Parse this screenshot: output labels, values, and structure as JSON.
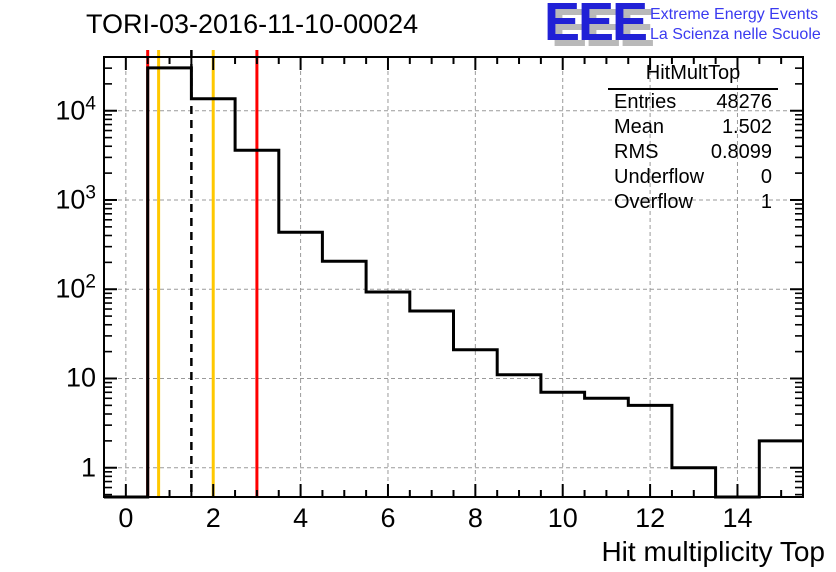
{
  "header": {
    "title": "TORI-03-2016-11-10-00024"
  },
  "logo": {
    "letters": "EEE",
    "line1": "Extreme Energy Events",
    "line2": "La Scienza nelle Scuole",
    "blue": "#2121d6",
    "shadow_gray": "#b9b9b9"
  },
  "stats": {
    "title": "HitMultTop",
    "rows": [
      [
        "Entries",
        "48276"
      ],
      [
        "Mean",
        "1.502"
      ],
      [
        "RMS",
        "0.8099"
      ],
      [
        "Underflow",
        "0"
      ],
      [
        "Overflow",
        "1"
      ]
    ]
  },
  "chart_data": {
    "type": "bar",
    "style": "step-histogram",
    "title": "TORI-03-2016-11-10-00024",
    "xlabel": "Hit multiplicity Top",
    "ylabel": "",
    "yscale": "log",
    "grid": true,
    "grid_color": "#9a9a9a",
    "line_color": "#000000",
    "bin_centers": [
      0,
      1,
      2,
      3,
      4,
      5,
      6,
      7,
      8,
      9,
      10,
      11,
      12,
      13,
      14,
      15
    ],
    "values": [
      0,
      30200,
      13600,
      3600,
      434,
      206,
      93,
      57,
      21,
      11,
      7,
      6,
      5,
      1,
      0,
      2
    ],
    "xlim": [
      -0.5,
      15.5
    ],
    "ylim": [
      0.47,
      40000
    ],
    "xticks_major": [
      0,
      2,
      4,
      6,
      8,
      10,
      12,
      14
    ],
    "xtick_minor_step": 0.5,
    "ytick_decades": [
      1,
      10,
      100,
      1000,
      10000
    ],
    "ytick_labels": [
      {
        "base": "1",
        "sup": ""
      },
      {
        "base": "10",
        "sup": ""
      },
      {
        "base": "10",
        "sup": "2"
      },
      {
        "base": "10",
        "sup": "3"
      },
      {
        "base": "10",
        "sup": "4"
      }
    ],
    "marker_lines": [
      {
        "x": 0.5,
        "color": "#ff0000",
        "style": "solid",
        "name": "red-threshold-low"
      },
      {
        "x": 0.75,
        "color": "#ffc800",
        "style": "solid",
        "name": "orange-threshold-low"
      },
      {
        "x": 1.5,
        "color": "#000000",
        "style": "dashed",
        "name": "mean-line"
      },
      {
        "x": 2.0,
        "color": "#ffc800",
        "style": "solid",
        "name": "orange-threshold-high"
      },
      {
        "x": 3.0,
        "color": "#ff0000",
        "style": "solid",
        "name": "red-threshold-high"
      }
    ]
  }
}
